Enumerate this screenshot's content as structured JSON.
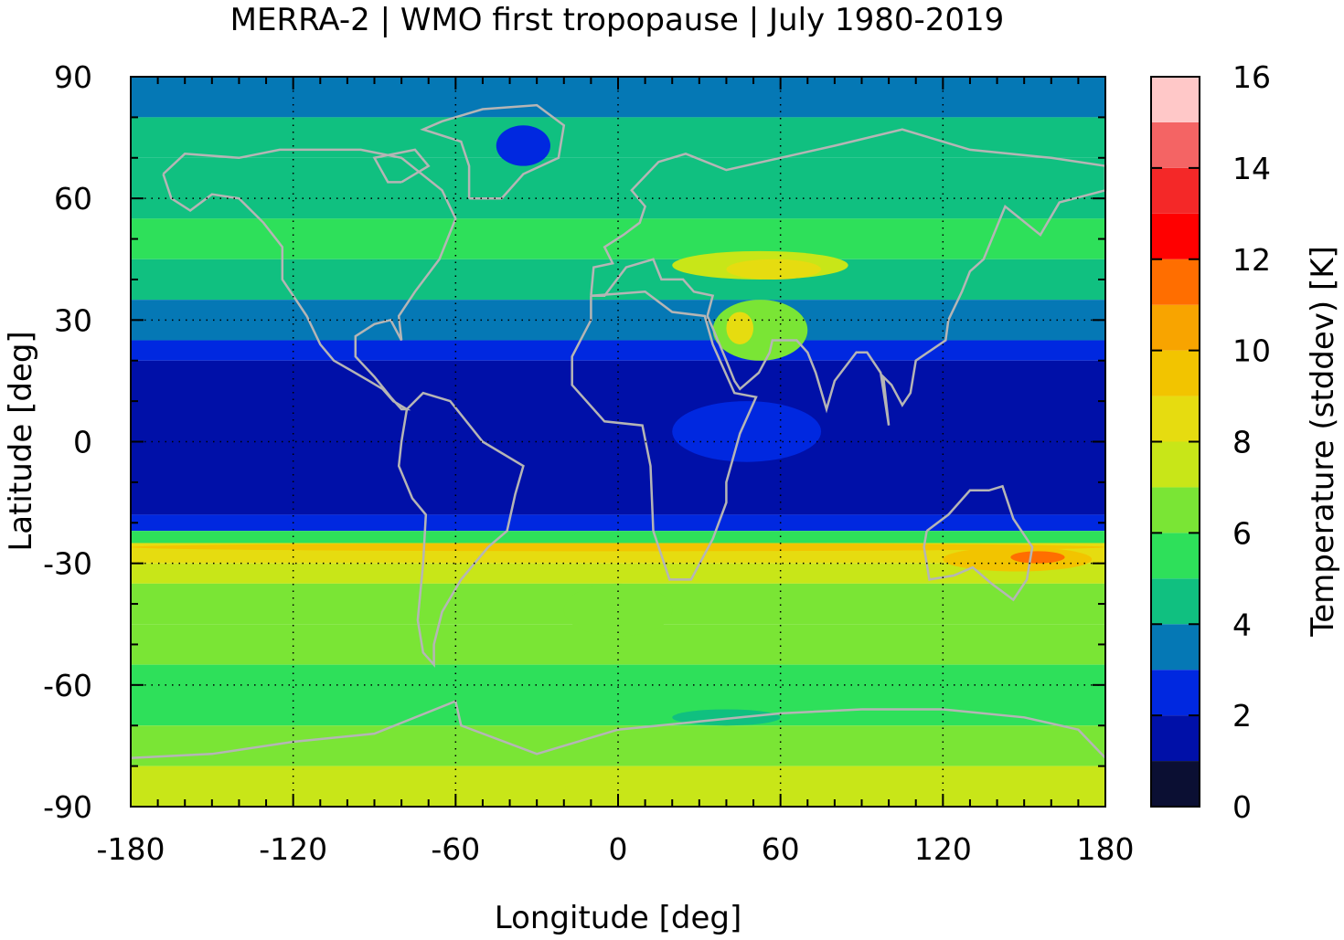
{
  "title": "MERRA-2 | WMO first tropopause | July 1980-2019",
  "chart_data": {
    "type": "heatmap",
    "title": "MERRA-2 | WMO first tropopause | July 1980-2019",
    "xlabel": "Longitude [deg]",
    "ylabel": "Latitude [deg]",
    "colorbar_label": "Temperature (stddev) [K]",
    "xlim": [
      -180,
      180
    ],
    "ylim": [
      -90,
      90
    ],
    "x_ticks": [
      "-180",
      "-120",
      "-60",
      "0",
      "60",
      "120",
      "180"
    ],
    "y_ticks": [
      "90",
      "60",
      "30",
      "0",
      "-30",
      "-60",
      "-90"
    ],
    "colorbar_range": [
      0,
      16
    ],
    "colorbar_ticks": [
      "16",
      "14",
      "12",
      "10",
      "8",
      "6",
      "4",
      "2",
      "0"
    ],
    "colorbar_levels": [
      {
        "from": 0,
        "to": 1,
        "color": "#0b0f33"
      },
      {
        "from": 1,
        "to": 2,
        "color": "#0010a8"
      },
      {
        "from": 2,
        "to": 3,
        "color": "#0028e0"
      },
      {
        "from": 3,
        "to": 4,
        "color": "#0578b5"
      },
      {
        "from": 4,
        "to": 5,
        "color": "#10c080"
      },
      {
        "from": 5,
        "to": 6,
        "color": "#2ee05a"
      },
      {
        "from": 6,
        "to": 7,
        "color": "#7ae535"
      },
      {
        "from": 7,
        "to": 8,
        "color": "#c8e618"
      },
      {
        "from": 8,
        "to": 9,
        "color": "#e6dc10"
      },
      {
        "from": 9,
        "to": 10,
        "color": "#f2c400"
      },
      {
        "from": 10,
        "to": 11,
        "color": "#f8a400"
      },
      {
        "from": 11,
        "to": 12,
        "color": "#ff6e00"
      },
      {
        "from": 12,
        "to": 13,
        "color": "#ff0000"
      },
      {
        "from": 13,
        "to": 14,
        "color": "#f42828"
      },
      {
        "from": 14,
        "to": 15,
        "color": "#f46464"
      },
      {
        "from": 15,
        "to": 16,
        "color": "#ffc8c8"
      }
    ],
    "zonal_bands": [
      {
        "lat": [
          80,
          90
        ],
        "value": 3.5
      },
      {
        "lat": [
          70,
          80
        ],
        "value": 4.5
      },
      {
        "lat": [
          55,
          70
        ],
        "value": 4.5
      },
      {
        "lat": [
          45,
          55
        ],
        "value": 5.5
      },
      {
        "lat": [
          35,
          45
        ],
        "value": 4.5
      },
      {
        "lat": [
          25,
          35
        ],
        "value": 3.5
      },
      {
        "lat": [
          20,
          25
        ],
        "value": 2.5
      },
      {
        "lat": [
          -18,
          20
        ],
        "value": 1.5
      },
      {
        "lat": [
          -22,
          -18
        ],
        "value": 2.5
      },
      {
        "lat": [
          -25,
          -22
        ],
        "value": 5.5
      },
      {
        "lat": [
          -30,
          -25
        ],
        "value": 8.5
      },
      {
        "lat": [
          -35,
          -30
        ],
        "value": 7.5
      },
      {
        "lat": [
          -45,
          -35
        ],
        "value": 6.5
      },
      {
        "lat": [
          -55,
          -45
        ],
        "value": 6.5
      },
      {
        "lat": [
          -70,
          -55
        ],
        "value": 5.5
      },
      {
        "lat": [
          -80,
          -70
        ],
        "value": 6.5
      },
      {
        "lat": [
          -90,
          -80
        ],
        "value": 7.5
      }
    ],
    "features": [
      {
        "lon": [
          -45,
          -25
        ],
        "lat": [
          68,
          78
        ],
        "value": 2.5
      },
      {
        "lon": [
          20,
          85
        ],
        "lat": [
          40,
          47
        ],
        "value": 7.5
      },
      {
        "lon": [
          40,
          75
        ],
        "lat": [
          40,
          45
        ],
        "value": 8.5
      },
      {
        "lon": [
          35,
          70
        ],
        "lat": [
          20,
          35
        ],
        "value": 6.5
      },
      {
        "lon": [
          40,
          50
        ],
        "lat": [
          24,
          32
        ],
        "value": 8.5
      },
      {
        "lon": [
          20,
          75
        ],
        "lat": [
          -5,
          10
        ],
        "value": 2.5
      },
      {
        "lon": [
          120,
          175
        ],
        "lat": [
          -32,
          -26
        ],
        "value": 9.5
      },
      {
        "lon": [
          145,
          165
        ],
        "lat": [
          -30,
          -27
        ],
        "value": 11.5
      },
      {
        "lon": [
          -180,
          180
        ],
        "lat": [
          -27,
          -25
        ],
        "value": 9.5
      },
      {
        "lon": [
          -20,
          20
        ],
        "lat": [
          -48,
          -35
        ],
        "value": 6.5
      },
      {
        "lon": [
          20,
          60
        ],
        "lat": [
          -70,
          -66
        ],
        "value": 4.5
      },
      {
        "lon": [
          -20,
          180
        ],
        "lat": [
          -89,
          -82
        ],
        "value": 7.5
      }
    ]
  }
}
